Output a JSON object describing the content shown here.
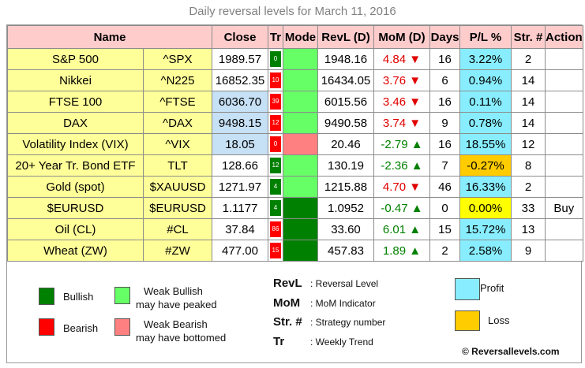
{
  "title": "Daily reversal levels for March 11, 2016",
  "colors": {
    "bullish": "#008000",
    "weak_bullish": "#66ff66",
    "bearish": "#ff0000",
    "weak_bearish": "#ff8080",
    "profit": "#88eeff",
    "loss": "#ffcc00",
    "header_bg": "#ffcccc",
    "name_bg": "#ffff99"
  },
  "headers": [
    "Name",
    "Close",
    "Tr",
    "Mode",
    "RevL (D)",
    "MoM (D)",
    "Days",
    "P/L %",
    "Str. #",
    "Action"
  ],
  "rows": [
    {
      "name": "S&P 500",
      "symbol": "^SPX",
      "close": "1989.57",
      "tr": "0",
      "tr_color": "#008000",
      "mode_color": "#66ff66",
      "revl": "1948.16",
      "mom": "4.84 ▼",
      "mom_dir": "down",
      "days": "16",
      "pl": "3.22%",
      "str": "2",
      "action": ""
    },
    {
      "name": "Nikkei",
      "symbol": "^N225",
      "close": "16852.35",
      "tr": "10",
      "tr_color": "#ff0000",
      "mode_color": "#66ff66",
      "revl": "16434.05",
      "mom": "3.76 ▼",
      "mom_dir": "down",
      "days": "6",
      "pl": "0.94%",
      "str": "14",
      "action": ""
    },
    {
      "name": "FTSE 100",
      "symbol": "^FTSE",
      "close": "6036.70",
      "tr": "39",
      "tr_color": "#ff0000",
      "mode_color": "#66ff66",
      "revl": "6015.56",
      "mom": "3.46 ▼",
      "mom_dir": "down",
      "days": "16",
      "pl": "0.11%",
      "str": "14",
      "action": ""
    },
    {
      "name": "DAX",
      "symbol": "^DAX",
      "close": "9498.15",
      "tr": "12",
      "tr_color": "#ff0000",
      "mode_color": "#66ff66",
      "revl": "9490.58",
      "mom": "3.74 ▼",
      "mom_dir": "down",
      "days": "9",
      "pl": "0.78%",
      "str": "14",
      "action": ""
    },
    {
      "name": "Volatility Index (VIX)",
      "symbol": "^VIX",
      "close": "18.05",
      "tr": "0",
      "tr_color": "#ff0000",
      "mode_color": "#ff8080",
      "revl": "20.46",
      "mom": "-2.79 ▲",
      "mom_dir": "up",
      "days": "16",
      "pl": "18.55%",
      "str": "12",
      "action": ""
    },
    {
      "name": "20+ Year Tr. Bond ETF",
      "symbol": "TLT",
      "close": "128.66",
      "tr": "12",
      "tr_color": "#008000",
      "mode_color": "#66ff66",
      "revl": "130.19",
      "mom": "-2.36 ▲",
      "mom_dir": "up",
      "days": "7",
      "pl": "-0.27%",
      "str": "8",
      "action": ""
    },
    {
      "name": "Gold (spot)",
      "symbol": "$XAUUSD",
      "close": "1271.97",
      "tr": "4",
      "tr_color": "#008000",
      "mode_color": "#66ff66",
      "revl": "1215.88",
      "mom": "4.70 ▼",
      "mom_dir": "down",
      "days": "46",
      "pl": "16.33%",
      "str": "2",
      "action": ""
    },
    {
      "name": "$EURUSD",
      "symbol": "$EURUSD",
      "close": "1.1177",
      "tr": "4",
      "tr_color": "#008000",
      "mode_color": "#008000",
      "revl": "1.0952",
      "mom": "-0.47 ▲",
      "mom_dir": "up",
      "days": "0",
      "pl": "0.00%",
      "str": "33",
      "action": "Buy"
    },
    {
      "name": "Oil (CL)",
      "symbol": "#CL",
      "close": "37.84",
      "tr": "86",
      "tr_color": "#ff0000",
      "mode_color": "#008000",
      "revl": "33.60",
      "mom": "6.01 ▲",
      "mom_dir": "up",
      "days": "15",
      "pl": "15.72%",
      "str": "13",
      "action": ""
    },
    {
      "name": "Wheat (ZW)",
      "symbol": "#ZW",
      "close": "477.00",
      "tr": "15",
      "tr_color": "#ff0000",
      "mode_color": "#008000",
      "revl": "457.83",
      "mom": "1.89 ▲",
      "mom_dir": "up",
      "days": "2",
      "pl": "2.58%",
      "str": "9",
      "action": ""
    }
  ],
  "legend": {
    "bullish": "Bullish",
    "bearish": "Bearish",
    "weak_bullish_1": "Weak Bullish",
    "weak_bullish_2": "may have peaked",
    "weak_bearish_1": "Weak Bearish",
    "weak_bearish_2": "may have bottomed",
    "revl_key": "RevL",
    "revl_val": ": Reversal Level",
    "mom_key": "MoM",
    "mom_val": ": MoM Indicator",
    "str_key": "Str. #",
    "str_val": ": Strategy number",
    "tr_key": "Tr",
    "tr_val": ": Weekly Trend",
    "profit": "Profit",
    "loss": "Loss",
    "copyright": "© Reversallevels.com"
  }
}
